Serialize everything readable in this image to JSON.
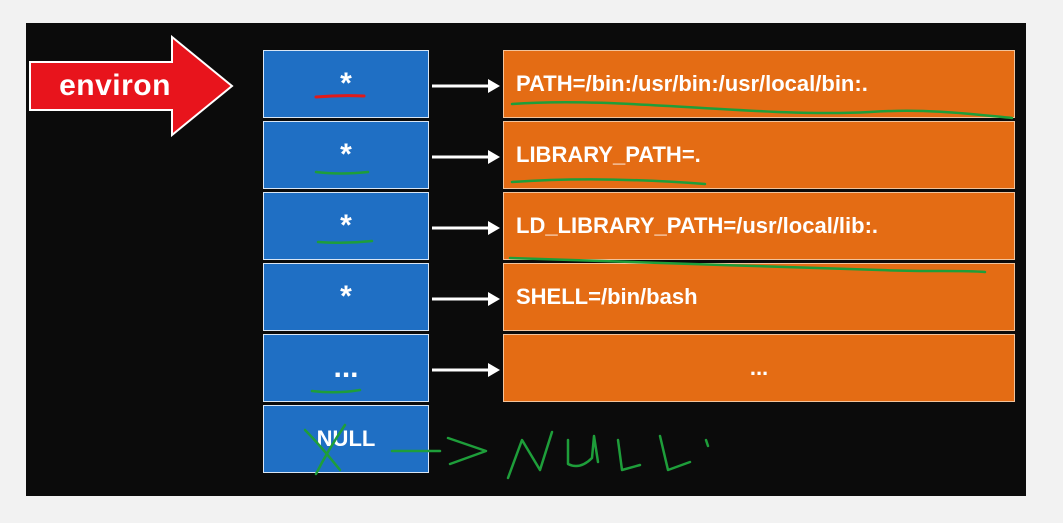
{
  "label": {
    "text": "environ"
  },
  "pointers": [
    "*",
    "*",
    "*",
    "*",
    "...",
    "NULL"
  ],
  "strings": [
    "PATH=/bin:/usr/bin:/usr/local/bin:.",
    "LIBRARY_PATH=.",
    "LD_LIBRARY_PATH=/usr/local/lib:.",
    "SHELL=/bin/bash",
    "..."
  ],
  "annotation": {
    "handwritten_text": "NULL"
  },
  "colors": {
    "slide_background": "#0b0b0b",
    "label_arrow": "#e8141c",
    "pointer_cell": "#1f6fc4",
    "string_cell": "#e46c14",
    "arrow": "#ffffff",
    "handwriting_green": "#1e9e3a",
    "handwriting_red": "#e01a1a"
  }
}
